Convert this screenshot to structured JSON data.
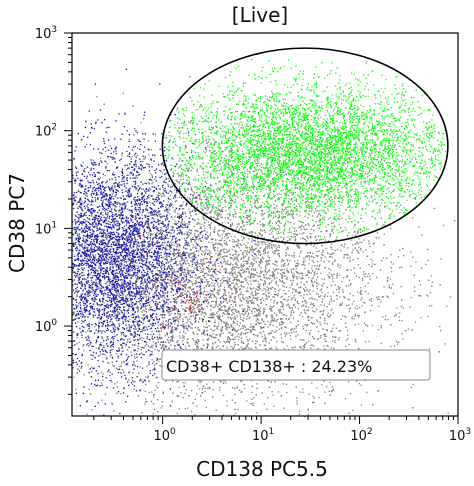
{
  "chart_data": {
    "type": "scatter",
    "title": "[Live]",
    "xlabel": "CD138 PC5.5",
    "ylabel": "CD38 PC7",
    "xscale": "log",
    "yscale": "log",
    "xlim": [
      0.12,
      1000
    ],
    "ylim": [
      0.12,
      1000
    ],
    "x_ticks": [
      {
        "value": 1,
        "base": "10",
        "exp": "0"
      },
      {
        "value": 10,
        "base": "10",
        "exp": "1"
      },
      {
        "value": 100,
        "base": "10",
        "exp": "2"
      },
      {
        "value": 1000,
        "base": "10",
        "exp": "3"
      }
    ],
    "y_ticks": [
      {
        "value": 1,
        "base": "10",
        "exp": "0"
      },
      {
        "value": 10,
        "base": "10",
        "exp": "1"
      },
      {
        "value": 100,
        "base": "10",
        "exp": "2"
      },
      {
        "value": 1000,
        "base": "10",
        "exp": "3"
      }
    ],
    "populations": [
      {
        "color": "#808080",
        "center": [
          4,
          3
        ],
        "spread": [
          1.8,
          1.4
        ],
        "count": 7000
      },
      {
        "color": "#1a1aa8",
        "center": [
          0.3,
          5
        ],
        "spread": [
          0.9,
          1.2
        ],
        "count": 3800
      },
      {
        "color": "#12ff12",
        "center": [
          30,
          60
        ],
        "spread": [
          1.6,
          0.75
        ],
        "count": 5500
      },
      {
        "color": "#c81e1e",
        "center": [
          2,
          1.8
        ],
        "spread": [
          0.5,
          0.45
        ],
        "count": 90
      }
    ],
    "gate": {
      "shape": "ellipse",
      "center": [
        28,
        70
      ],
      "radius_decades": [
        1.45,
        1.0
      ],
      "label": "CD38+ CD138+ : 24.23%",
      "percent": 24.23
    },
    "grid": false
  }
}
